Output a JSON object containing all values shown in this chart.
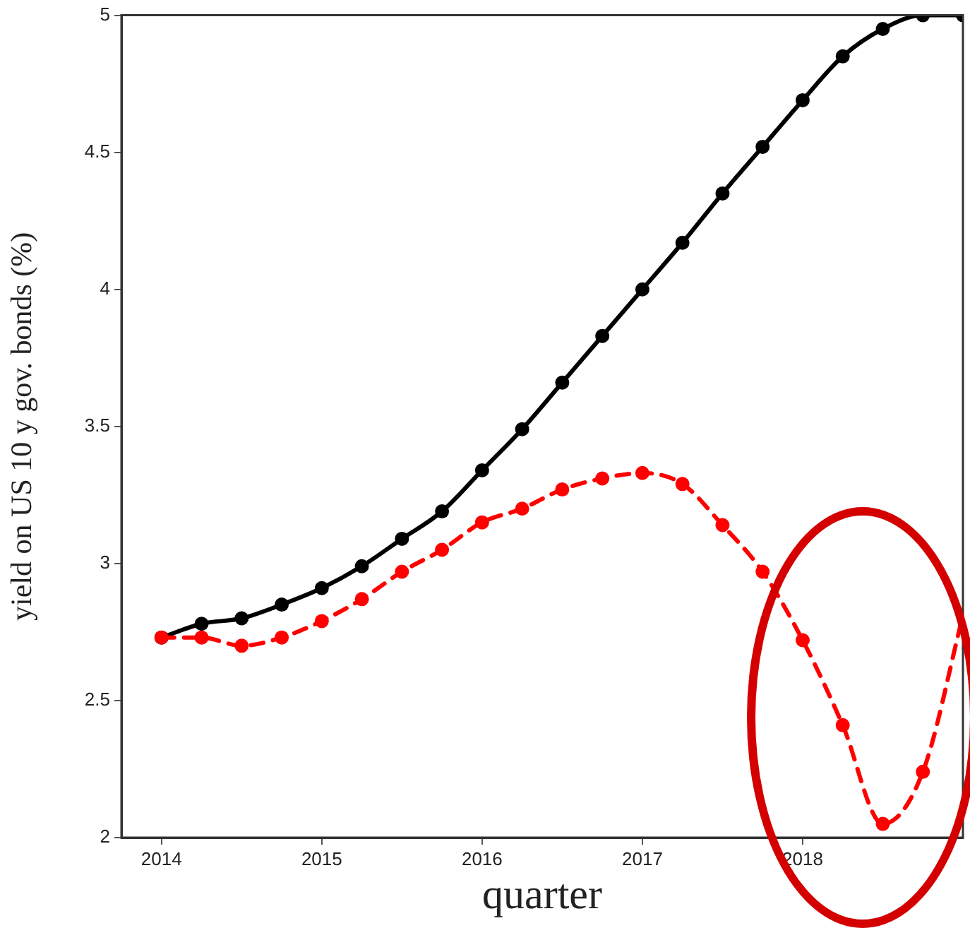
{
  "chart_data": {
    "type": "line",
    "xlabel": "quarter",
    "ylabel": "yield on US 10 y gov. bonds (%)",
    "x": [
      2014,
      2014.25,
      2014.5,
      2014.75,
      2015,
      2015.25,
      2015.5,
      2015.75,
      2016,
      2016.25,
      2016.5,
      2016.75,
      2017,
      2017.25,
      2017.5,
      2017.75,
      2018,
      2018.25,
      2018.5,
      2018.75,
      2019
    ],
    "series": [
      {
        "color": "#000000",
        "line_style": "solid",
        "values": [
          2.73,
          2.78,
          2.8,
          2.85,
          2.91,
          2.99,
          3.09,
          3.19,
          3.34,
          3.49,
          3.66,
          3.83,
          4.0,
          4.17,
          4.35,
          4.52,
          4.69,
          4.85,
          4.95,
          5.0,
          5.0
        ]
      },
      {
        "color": "#ff0000",
        "line_style": "dashed",
        "values": [
          2.73,
          2.73,
          2.7,
          2.73,
          2.79,
          2.87,
          2.97,
          3.05,
          3.15,
          3.2,
          3.27,
          3.31,
          3.33,
          3.29,
          3.14,
          2.97,
          2.72,
          2.41,
          2.05,
          2.24,
          2.81
        ]
      }
    ],
    "xlim": [
      2013.75,
      2019
    ],
    "xticks": [
      2014,
      2015,
      2016,
      2017,
      2018
    ],
    "ylim": [
      2,
      5
    ],
    "yticks": [
      2,
      2.5,
      3,
      3.5,
      4,
      4.5,
      5
    ],
    "grid": false,
    "legend": false,
    "marker": "circle"
  }
}
